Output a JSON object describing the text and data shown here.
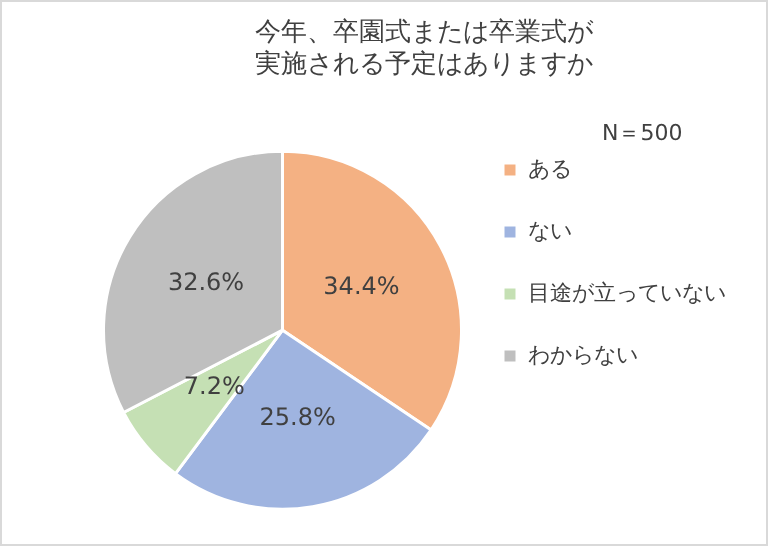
{
  "chart_data": {
    "type": "pie",
    "title": "今年、卒園式または卒業式が実施される予定はありますか",
    "categories": [
      "ある",
      "ない",
      "目途が立っていない",
      "わからない"
    ],
    "values": [
      34.4,
      25.8,
      7.2,
      32.6
    ],
    "colors": [
      "#f4b183",
      "#9fb4e0",
      "#c5e0b4",
      "#bfbfbf"
    ],
    "value_labels": [
      "34.4%",
      "25.8%",
      "7.2%",
      "32.6%"
    ],
    "legend": "right",
    "annotations": [
      "N＝500"
    ]
  }
}
